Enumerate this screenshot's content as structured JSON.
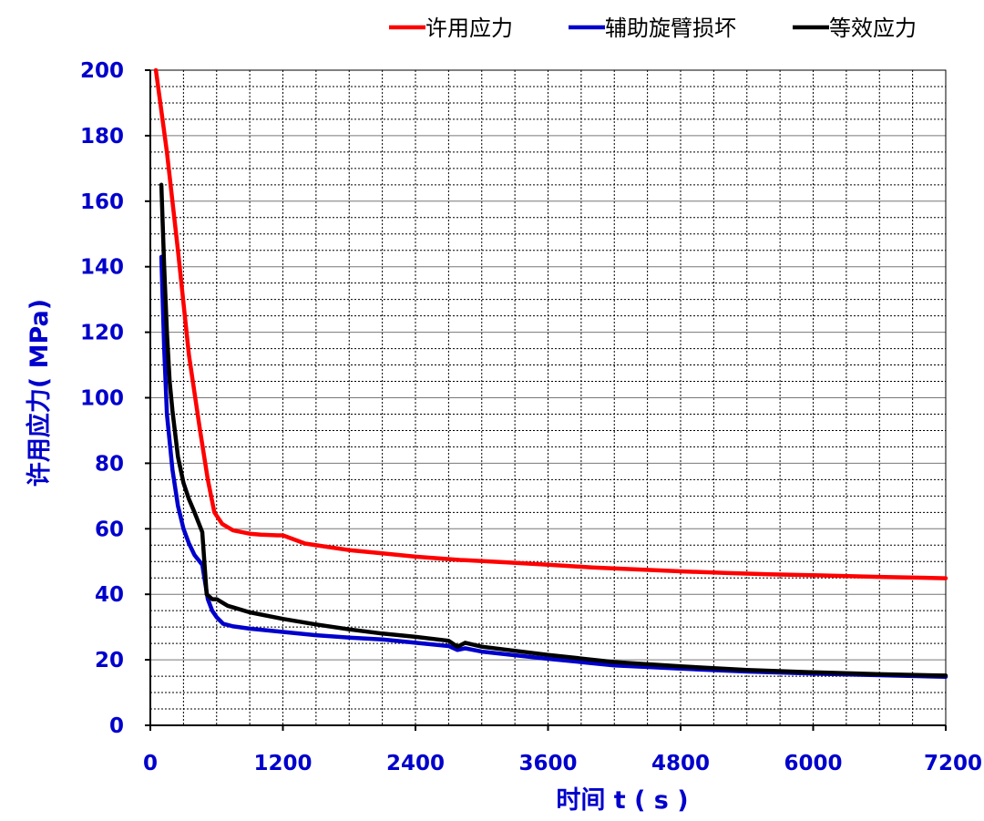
{
  "chart_data": {
    "type": "line",
    "xlabel": "时间 t ( s )",
    "ylabel": "许用应力( MPa)",
    "xlim": [
      0,
      7200
    ],
    "ylim": [
      0,
      200
    ],
    "x_ticks": [
      0,
      1200,
      2400,
      3600,
      4800,
      6000,
      7200
    ],
    "y_ticks": [
      0,
      20,
      40,
      60,
      80,
      100,
      120,
      140,
      160,
      180,
      200
    ],
    "grid": true,
    "legend_position": "top-right",
    "series": [
      {
        "name": "许用应力",
        "color": "#ff0000",
        "points": [
          [
            50,
            200
          ],
          [
            150,
            175
          ],
          [
            250,
            145
          ],
          [
            350,
            113
          ],
          [
            450,
            90
          ],
          [
            520,
            75
          ],
          [
            580,
            65
          ],
          [
            650,
            61.5
          ],
          [
            750,
            59.5
          ],
          [
            900,
            58.5
          ],
          [
            1000,
            58.2
          ],
          [
            1150,
            58.0
          ],
          [
            1200,
            58.0
          ],
          [
            1400,
            55.5
          ],
          [
            1600,
            54.5
          ],
          [
            1800,
            53.5
          ],
          [
            2100,
            52.5
          ],
          [
            2400,
            51.5
          ],
          [
            2800,
            50.5
          ],
          [
            3200,
            49.8
          ],
          [
            3600,
            49.0
          ],
          [
            4000,
            48.2
          ],
          [
            4400,
            47.6
          ],
          [
            4800,
            47.0
          ],
          [
            5200,
            46.5
          ],
          [
            5600,
            46.1
          ],
          [
            6000,
            45.8
          ],
          [
            6600,
            45.3
          ],
          [
            7200,
            44.9
          ]
        ]
      },
      {
        "name": "辅助旋臂损坏",
        "color": "#0000cc",
        "points": [
          [
            100,
            143
          ],
          [
            125,
            115
          ],
          [
            150,
            95
          ],
          [
            200,
            78
          ],
          [
            250,
            67
          ],
          [
            300,
            60
          ],
          [
            350,
            55.5
          ],
          [
            400,
            52
          ],
          [
            470,
            49
          ],
          [
            520,
            38.5
          ],
          [
            560,
            35
          ],
          [
            600,
            33
          ],
          [
            660,
            31
          ],
          [
            750,
            30.2
          ],
          [
            900,
            29.5
          ],
          [
            1200,
            28.5
          ],
          [
            1500,
            27.5
          ],
          [
            1800,
            26.8
          ],
          [
            2100,
            26.2
          ],
          [
            2400,
            25.2
          ],
          [
            2700,
            24.2
          ],
          [
            2780,
            23.0
          ],
          [
            2850,
            23.5
          ],
          [
            3000,
            22.5
          ],
          [
            3600,
            20.3
          ],
          [
            4200,
            18.3
          ],
          [
            4800,
            17.3
          ],
          [
            5400,
            16.4
          ],
          [
            6000,
            15.8
          ],
          [
            6600,
            15.3
          ],
          [
            7200,
            14.8
          ]
        ]
      },
      {
        "name": "等效应力",
        "color": "#000000",
        "points": [
          [
            100,
            165
          ],
          [
            125,
            140
          ],
          [
            150,
            120
          ],
          [
            175,
            105
          ],
          [
            200,
            96
          ],
          [
            250,
            82
          ],
          [
            300,
            74
          ],
          [
            350,
            69
          ],
          [
            400,
            65
          ],
          [
            470,
            59
          ],
          [
            510,
            40
          ],
          [
            560,
            38.5
          ],
          [
            600,
            38.5
          ],
          [
            700,
            36.5
          ],
          [
            900,
            34.5
          ],
          [
            1200,
            32.5
          ],
          [
            1500,
            30.8
          ],
          [
            1800,
            29.3
          ],
          [
            2100,
            28.0
          ],
          [
            2400,
            27.0
          ],
          [
            2700,
            25.8
          ],
          [
            2780,
            24.0
          ],
          [
            2850,
            25.2
          ],
          [
            3000,
            24.0
          ],
          [
            3600,
            21.5
          ],
          [
            4200,
            19.3
          ],
          [
            4800,
            18.0
          ],
          [
            5400,
            16.9
          ],
          [
            6000,
            16.2
          ],
          [
            6600,
            15.6
          ],
          [
            7200,
            15.2
          ]
        ]
      }
    ]
  }
}
